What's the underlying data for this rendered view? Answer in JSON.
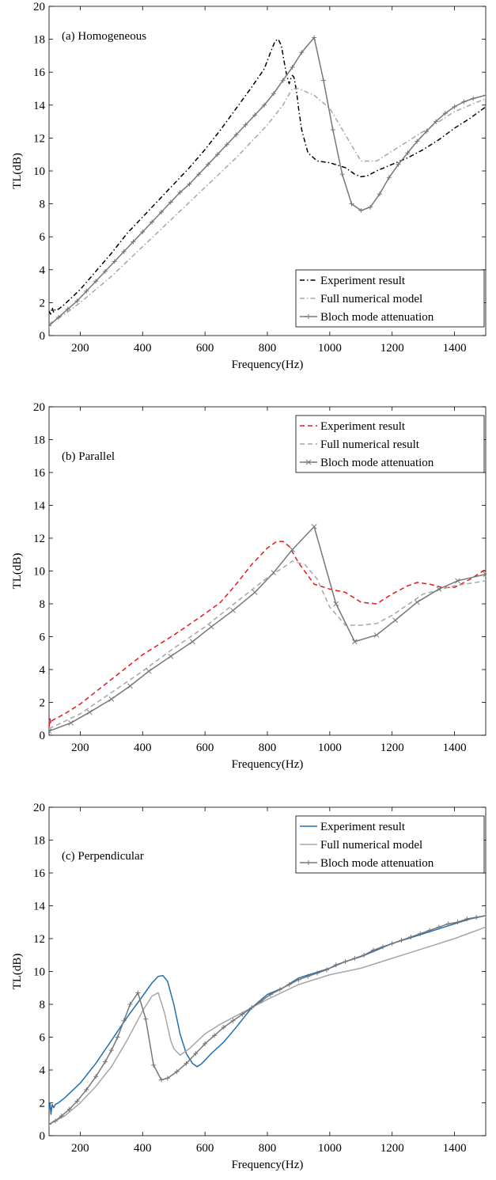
{
  "chart_data": [
    {
      "type": "line",
      "annotation": "(a) Homogeneous",
      "xlabel": "Frequency(Hz)",
      "ylabel": "TL(dB)",
      "xlim": [
        100,
        1500
      ],
      "ylim": [
        0,
        20
      ],
      "xticks": [
        200,
        400,
        600,
        800,
        1000,
        1200,
        1400
      ],
      "yticks": [
        0,
        2,
        4,
        6,
        8,
        10,
        12,
        14,
        16,
        18,
        20
      ],
      "legend_position": "bottom-right",
      "series": [
        {
          "name": "Experiment result",
          "color": "#000000",
          "dash": "dashdot",
          "marker": "none",
          "x": [
            100,
            105,
            110,
            115,
            120,
            130,
            150,
            200,
            250,
            300,
            350,
            400,
            450,
            500,
            550,
            600,
            650,
            700,
            750,
            790,
            810,
            825,
            835,
            845,
            855,
            860,
            865,
            870,
            875,
            880,
            885,
            890,
            895,
            900,
            910,
            930,
            960,
            1000,
            1050,
            1080,
            1100,
            1120,
            1150,
            1200,
            1250,
            1300,
            1350,
            1400,
            1450,
            1500
          ],
          "y": [
            1.5,
            1.3,
            1.7,
            1.4,
            1.6,
            1.6,
            1.9,
            2.8,
            3.9,
            5.0,
            6.2,
            7.2,
            8.2,
            9.2,
            10.2,
            11.3,
            12.5,
            13.8,
            15.1,
            16.2,
            17.2,
            17.9,
            18.0,
            17.6,
            16.5,
            16.0,
            15.6,
            15.3,
            15.6,
            15.8,
            15.7,
            15.2,
            14.6,
            13.8,
            12.5,
            11.1,
            10.6,
            10.5,
            10.2,
            9.8,
            9.65,
            9.7,
            10.0,
            10.4,
            10.8,
            11.3,
            11.9,
            12.6,
            13.2,
            13.9
          ]
        },
        {
          "name": "Full numerical model",
          "color": "#a6a6a6",
          "dash": "dashdot",
          "marker": "none",
          "x": [
            100,
            150,
            200,
            300,
            400,
            500,
            600,
            700,
            800,
            850,
            880,
            900,
            950,
            1000,
            1050,
            1100,
            1150,
            1200,
            1300,
            1400,
            1500
          ],
          "y": [
            0.7,
            1.3,
            2.0,
            3.6,
            5.4,
            7.2,
            9.0,
            10.8,
            12.8,
            14.0,
            15.0,
            15.0,
            14.6,
            13.8,
            12.2,
            10.6,
            10.6,
            11.2,
            12.4,
            13.6,
            14.4
          ]
        },
        {
          "name": "Bloch mode attenuation",
          "color": "#777777",
          "dash": "solid",
          "marker": "plus",
          "x": [
            100,
            130,
            160,
            190,
            220,
            250,
            280,
            310,
            340,
            370,
            400,
            430,
            460,
            490,
            520,
            550,
            580,
            610,
            640,
            670,
            700,
            730,
            760,
            790,
            820,
            850,
            880,
            910,
            950,
            980,
            1010,
            1040,
            1070,
            1100,
            1130,
            1160,
            1190,
            1220,
            1250,
            1280,
            1310,
            1340,
            1370,
            1400,
            1430,
            1460,
            1500
          ],
          "y": [
            0.6,
            1.1,
            1.6,
            2.1,
            2.7,
            3.3,
            3.9,
            4.5,
            5.1,
            5.7,
            6.3,
            6.9,
            7.5,
            8.1,
            8.7,
            9.2,
            9.8,
            10.4,
            11.0,
            11.6,
            12.2,
            12.8,
            13.4,
            14.0,
            14.7,
            15.5,
            16.3,
            17.2,
            18.1,
            15.5,
            12.5,
            9.8,
            8.0,
            7.6,
            7.8,
            8.6,
            9.6,
            10.4,
            11.1,
            11.8,
            12.4,
            13.0,
            13.5,
            13.9,
            14.2,
            14.4,
            14.6
          ]
        }
      ]
    },
    {
      "type": "line",
      "annotation": "(b)  Parallel",
      "xlabel": "Frequency(Hz)",
      "ylabel": "TL(dB)",
      "xlim": [
        100,
        1500
      ],
      "ylim": [
        0,
        20
      ],
      "xticks": [
        200,
        400,
        600,
        800,
        1000,
        1200,
        1400
      ],
      "yticks": [
        0,
        2,
        4,
        6,
        8,
        10,
        12,
        14,
        16,
        18,
        20
      ],
      "legend_position": "top-right",
      "series": [
        {
          "name": "Experiment result",
          "color": "#e8161b",
          "dash": "dashed",
          "marker": "none",
          "x": [
            100,
            103,
            106,
            110,
            120,
            150,
            200,
            300,
            400,
            500,
            600,
            650,
            700,
            750,
            800,
            830,
            850,
            870,
            900,
            950,
            1000,
            1050,
            1100,
            1150,
            1200,
            1250,
            1280,
            1320,
            1360,
            1400,
            1450,
            1500
          ],
          "y": [
            0.5,
            1.0,
            0.7,
            0.9,
            1.0,
            1.3,
            1.9,
            3.4,
            4.9,
            6.1,
            7.4,
            8.1,
            9.2,
            10.4,
            11.4,
            11.8,
            11.8,
            11.5,
            10.5,
            9.2,
            8.9,
            8.7,
            8.1,
            8.0,
            8.6,
            9.1,
            9.3,
            9.2,
            9.0,
            9.0,
            9.5,
            10.1
          ]
        },
        {
          "name": "Full numerical result",
          "color": "#a6a6a6",
          "dash": "dashed",
          "marker": "none",
          "x": [
            100,
            200,
            300,
            400,
            500,
            600,
            700,
            800,
            850,
            880,
            920,
            960,
            1000,
            1050,
            1100,
            1150,
            1200,
            1300,
            1400,
            1500
          ],
          "y": [
            0.4,
            1.3,
            2.6,
            3.9,
            5.3,
            6.6,
            8.1,
            9.6,
            10.2,
            10.6,
            10.4,
            9.5,
            7.8,
            6.7,
            6.7,
            6.8,
            7.3,
            8.6,
            9.1,
            9.4
          ]
        },
        {
          "name": "Bloch mode attenuation",
          "color": "#777777",
          "dash": "solid",
          "marker": "cross",
          "x": [
            100,
            170,
            230,
            300,
            360,
            420,
            490,
            560,
            620,
            690,
            760,
            820,
            880,
            950,
            1020,
            1080,
            1150,
            1210,
            1280,
            1350,
            1410,
            1500
          ],
          "y": [
            0.25,
            0.75,
            1.4,
            2.2,
            3.0,
            3.9,
            4.8,
            5.7,
            6.6,
            7.6,
            8.7,
            9.9,
            11.3,
            12.7,
            8.0,
            5.7,
            6.1,
            7.0,
            8.1,
            8.9,
            9.4,
            9.8
          ]
        }
      ]
    },
    {
      "type": "line",
      "annotation": "(c) Perpendicular",
      "xlabel": "Frequency(Hz)",
      "ylabel": "TL(dB)",
      "xlim": [
        100,
        1500
      ],
      "ylim": [
        0,
        20
      ],
      "xticks": [
        200,
        400,
        600,
        800,
        1000,
        1200,
        1400
      ],
      "yticks": [
        0,
        2,
        4,
        6,
        8,
        10,
        12,
        14,
        16,
        18,
        20
      ],
      "legend_position": "top-right",
      "series": [
        {
          "name": "Experiment result",
          "color": "#1f6fb4",
          "dash": "solid",
          "marker": "none",
          "x": [
            100,
            103,
            106,
            110,
            115,
            120,
            130,
            150,
            200,
            250,
            300,
            350,
            400,
            430,
            450,
            465,
            480,
            500,
            520,
            540,
            560,
            575,
            590,
            620,
            660,
            700,
            750,
            800,
            850,
            900,
            950,
            1000,
            1050,
            1100,
            1150,
            1200,
            1250,
            1300,
            1350,
            1400,
            1450,
            1500
          ],
          "y": [
            1.6,
            2.0,
            1.3,
            1.9,
            1.7,
            1.9,
            2.0,
            2.3,
            3.2,
            4.4,
            5.8,
            7.2,
            8.5,
            9.3,
            9.7,
            9.75,
            9.4,
            8.0,
            6.2,
            5.0,
            4.4,
            4.2,
            4.4,
            5.0,
            5.7,
            6.6,
            7.8,
            8.6,
            9.0,
            9.6,
            9.9,
            10.2,
            10.6,
            10.9,
            11.3,
            11.7,
            12.0,
            12.3,
            12.6,
            12.9,
            13.2,
            13.4
          ]
        },
        {
          "name": "Full numerical model",
          "color": "#a6a6a6",
          "dash": "solid",
          "marker": "none",
          "x": [
            100,
            150,
            200,
            250,
            300,
            350,
            400,
            430,
            450,
            470,
            490,
            500,
            520,
            550,
            600,
            650,
            700,
            800,
            900,
            1000,
            1100,
            1200,
            1300,
            1400,
            1500
          ],
          "y": [
            0.7,
            1.2,
            2.0,
            3.0,
            4.2,
            5.8,
            7.6,
            8.5,
            8.7,
            7.5,
            5.8,
            5.3,
            4.9,
            5.3,
            6.2,
            6.8,
            7.3,
            8.3,
            9.2,
            9.8,
            10.2,
            10.8,
            11.4,
            12.0,
            12.7
          ]
        },
        {
          "name": "Bloch mode attenuation",
          "color": "#777777",
          "dash": "solid",
          "marker": "plus",
          "x": [
            100,
            120,
            140,
            165,
            190,
            220,
            250,
            280,
            300,
            320,
            340,
            360,
            385,
            410,
            435,
            460,
            480,
            510,
            540,
            570,
            600,
            630,
            660,
            690,
            720,
            750,
            780,
            810,
            840,
            870,
            900,
            930,
            960,
            990,
            1020,
            1050,
            1080,
            1110,
            1140,
            1170,
            1200,
            1230,
            1260,
            1290,
            1320,
            1350,
            1380,
            1410,
            1440,
            1470,
            1500
          ],
          "y": [
            0.7,
            0.9,
            1.2,
            1.6,
            2.1,
            2.8,
            3.6,
            4.5,
            5.2,
            6.0,
            7.0,
            8.0,
            8.7,
            7.1,
            4.3,
            3.4,
            3.5,
            3.9,
            4.4,
            5.0,
            5.6,
            6.1,
            6.6,
            7.0,
            7.4,
            7.8,
            8.2,
            8.6,
            8.9,
            9.2,
            9.5,
            9.7,
            9.9,
            10.1,
            10.4,
            10.6,
            10.8,
            11.0,
            11.3,
            11.5,
            11.7,
            11.9,
            12.1,
            12.3,
            12.5,
            12.7,
            12.9,
            13.0,
            13.2,
            13.3,
            13.4
          ]
        }
      ]
    }
  ]
}
